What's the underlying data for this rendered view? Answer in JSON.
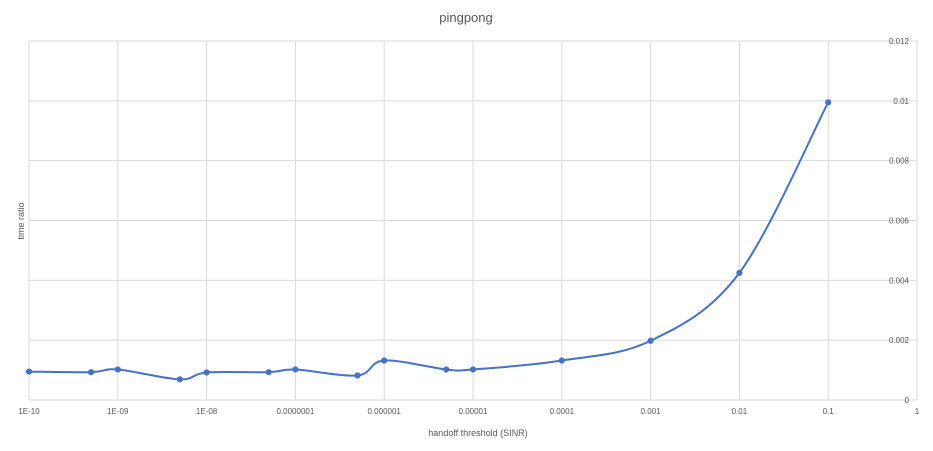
{
  "chart_data": {
    "type": "line",
    "title": "pingpong",
    "xlabel": "handoff threshold  (SINR)",
    "ylabel": "time ratio",
    "x_scale": "log",
    "xlim": [
      1e-10,
      1
    ],
    "ylim": [
      0,
      0.012
    ],
    "grid": true,
    "legend": "none",
    "x_ticks": [
      {
        "value": 1e-10,
        "label": "1E-10"
      },
      {
        "value": 1e-09,
        "label": "1E-09"
      },
      {
        "value": 1e-08,
        "label": "1E-08"
      },
      {
        "value": 1e-07,
        "label": "0.0000001"
      },
      {
        "value": 1e-06,
        "label": "0.000001"
      },
      {
        "value": 1e-05,
        "label": "0.00001"
      },
      {
        "value": 0.0001,
        "label": "0.0001"
      },
      {
        "value": 0.001,
        "label": "0.001"
      },
      {
        "value": 0.01,
        "label": "0.01"
      },
      {
        "value": 0.1,
        "label": "0.1"
      },
      {
        "value": 1,
        "label": "1"
      }
    ],
    "y_ticks": [
      {
        "value": 0,
        "label": "0"
      },
      {
        "value": 0.002,
        "label": "0.002"
      },
      {
        "value": 0.004,
        "label": "0.004"
      },
      {
        "value": 0.006,
        "label": "0.006"
      },
      {
        "value": 0.008,
        "label": "0.008"
      },
      {
        "value": 0.01,
        "label": "0.01"
      },
      {
        "value": 0.012,
        "label": "0.012"
      }
    ],
    "series": [
      {
        "color": "#4472c4",
        "points": [
          {
            "x": 1e-10,
            "y": 0.00095
          },
          {
            "x": 5e-10,
            "y": 0.00093
          },
          {
            "x": 1e-09,
            "y": 0.00102
          },
          {
            "x": 5e-09,
            "y": 0.00069
          },
          {
            "x": 1e-08,
            "y": 0.00092
          },
          {
            "x": 5e-08,
            "y": 0.00093
          },
          {
            "x": 1e-07,
            "y": 0.00102
          },
          {
            "x": 5e-07,
            "y": 0.00082
          },
          {
            "x": 1e-06,
            "y": 0.00132
          },
          {
            "x": 5e-06,
            "y": 0.00102
          },
          {
            "x": 1e-05,
            "y": 0.00102
          },
          {
            "x": 0.0001,
            "y": 0.00132
          },
          {
            "x": 0.001,
            "y": 0.00198
          },
          {
            "x": 0.01,
            "y": 0.00425
          },
          {
            "x": 0.1,
            "y": 0.00995
          }
        ]
      }
    ]
  }
}
